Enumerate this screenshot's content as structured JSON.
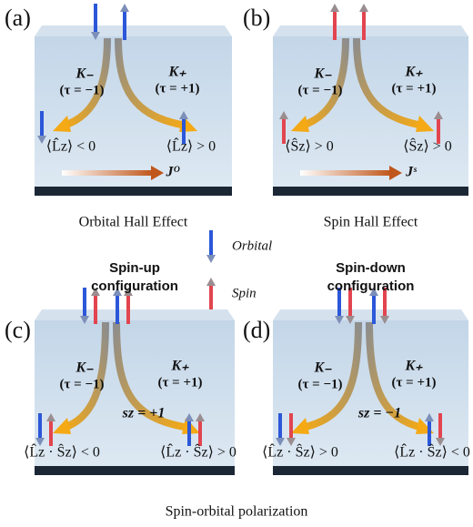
{
  "panels": [
    {
      "label": "(a)",
      "valley_left": "K₋",
      "tau_left": "(τ = −1)",
      "valley_right": "K₊",
      "tau_right": "(τ = +1)",
      "result_left": "⟨L̂z⟩ < 0",
      "result_right": "⟨L̂z⟩ > 0",
      "current": "Jᴼ",
      "caption": "Orbital Hall Effect"
    },
    {
      "label": "(b)",
      "valley_left": "K₋",
      "tau_left": "(τ = −1)",
      "valley_right": "K₊",
      "tau_right": "(τ = +1)",
      "result_left": "⟨Ŝz⟩ > 0",
      "result_right": "⟨Ŝz⟩ > 0",
      "current": "Jˢ",
      "caption": "Spin Hall Effect"
    },
    {
      "label": "(c)",
      "heading": [
        "Spin-up",
        "configuration"
      ],
      "valley_left": "K₋",
      "tau_left": "(τ = −1)",
      "valley_right": "K₊",
      "tau_right": "(τ = +1)",
      "sz": "sz = +1",
      "result_left": "⟨L̂z · Ŝz⟩ < 0",
      "result_right": "⟨L̂z · Ŝz⟩ > 0"
    },
    {
      "label": "(d)",
      "heading": [
        "Spin-down",
        "configuration"
      ],
      "valley_left": "K₋",
      "tau_left": "(τ = −1)",
      "valley_right": "K₊",
      "tau_right": "(τ = +1)",
      "sz": "sz = −1",
      "result_left": "⟨L̂z · Ŝz⟩ > 0",
      "result_right": "⟨L̂z · Ŝz⟩ < 0"
    }
  ],
  "legend": {
    "orbital": "Orbital",
    "spin": "Spin"
  },
  "caption": "Spin-orbital polarization"
}
